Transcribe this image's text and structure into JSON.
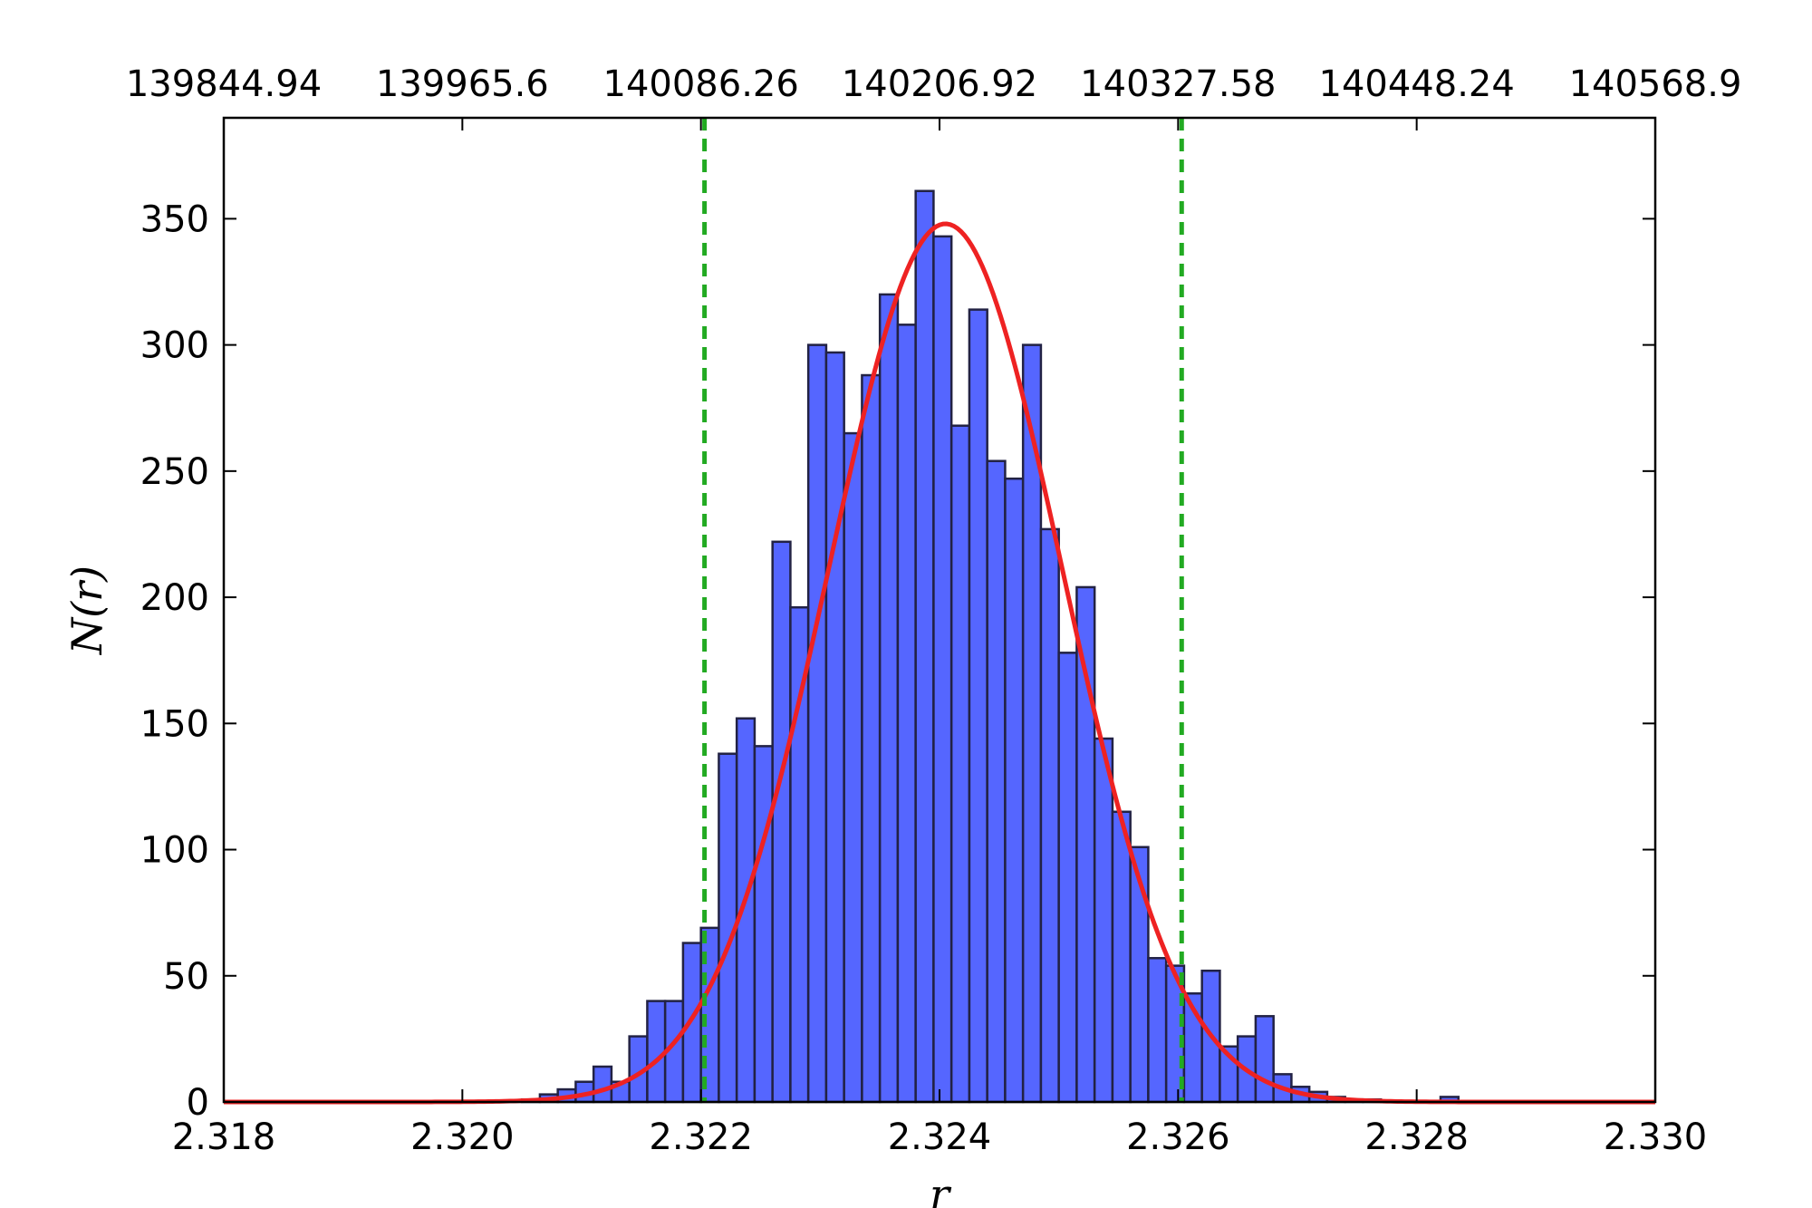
{
  "chart_data": {
    "type": "bar",
    "title": "",
    "xlabel": "r",
    "ylabel": "N(r)",
    "xlim": [
      2.318,
      2.33
    ],
    "ylim": [
      0,
      390
    ],
    "x_ticks": [
      "2.318",
      "2.320",
      "2.322",
      "2.324",
      "2.326",
      "2.328",
      "2.330"
    ],
    "x_tick_values": [
      2.318,
      2.32,
      2.322,
      2.324,
      2.326,
      2.328,
      2.33
    ],
    "y_ticks": [
      "0",
      "50",
      "100",
      "150",
      "200",
      "250",
      "300",
      "350"
    ],
    "y_tick_values": [
      0,
      50,
      100,
      150,
      200,
      250,
      300,
      350
    ],
    "top_x_ticks": [
      "139844.94",
      "139965.6",
      "140086.26",
      "140206.92",
      "140327.58",
      "140448.24",
      "140568.9"
    ],
    "histogram": {
      "bin_width": 0.00015,
      "bin_left_edges": [
        2.3205,
        2.32065,
        2.3208,
        2.32095,
        2.3211,
        2.32125,
        2.3214,
        2.32155,
        2.3217,
        2.32185,
        2.322,
        2.32215,
        2.3223,
        2.32245,
        2.3226,
        2.32275,
        2.3229,
        2.32305,
        2.3232,
        2.32335,
        2.3235,
        2.32365,
        2.3238,
        2.32395,
        2.3241,
        2.32425,
        2.3244,
        2.32455,
        2.3247,
        2.32485,
        2.325,
        2.32515,
        2.3253,
        2.32545,
        2.3256,
        2.32575,
        2.3259,
        2.32605,
        2.3262,
        2.32635,
        2.3265,
        2.32665,
        2.3268,
        2.32695,
        2.3271,
        2.32725,
        2.3274,
        2.32755,
        2.3282
      ],
      "counts": [
        1,
        3,
        5,
        8,
        14,
        8,
        26,
        40,
        40,
        63,
        69,
        138,
        152,
        141,
        222,
        196,
        300,
        297,
        265,
        288,
        320,
        308,
        361,
        343,
        268,
        314,
        254,
        247,
        300,
        227,
        178,
        204,
        144,
        115,
        101,
        57,
        54,
        43,
        52,
        22,
        26,
        34,
        11,
        6,
        4,
        2,
        1,
        1,
        2
      ]
    },
    "fit_curve": {
      "type": "gaussian",
      "mean": 2.32405,
      "sigma": 0.00098,
      "amplitude": 348
    },
    "vertical_lines": [
      2.32203,
      2.32603
    ],
    "colors": {
      "bars": "#5566ff",
      "bar_edge": "#222244",
      "fit": "#ee2222",
      "vlines": "#22aa22"
    },
    "grid": false,
    "legend": "none"
  }
}
